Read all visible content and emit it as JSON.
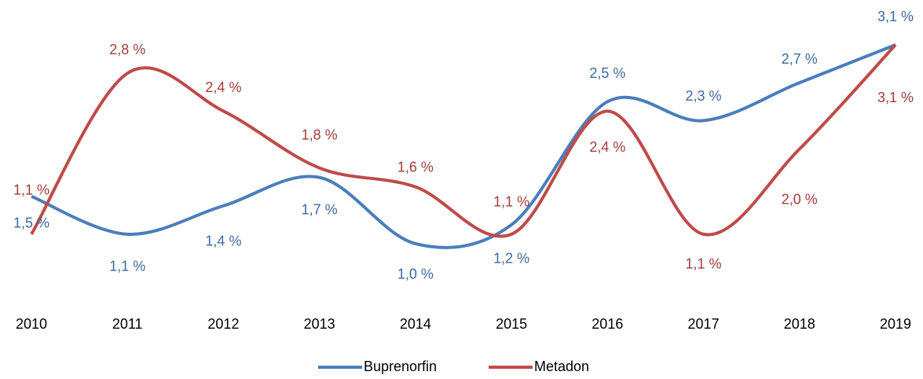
{
  "chart_data": {
    "type": "line",
    "categories": [
      "2010",
      "2011",
      "2012",
      "2013",
      "2014",
      "2015",
      "2016",
      "2017",
      "2018",
      "2019"
    ],
    "series": [
      {
        "name": "Buprenorfin",
        "color": "#4a7ebb",
        "values": [
          1.5,
          1.1,
          1.4,
          1.7,
          1.0,
          1.2,
          2.5,
          2.3,
          2.7,
          3.1
        ],
        "value_labels": [
          "1,5 %",
          "1,1 %",
          "1,4 %",
          "1,7 %",
          "1,0 %",
          "1,2 %",
          "2,5 %",
          "2,3 %",
          "2,7 %",
          "3,1 %"
        ]
      },
      {
        "name": "Metadon",
        "color": "#be4b48",
        "values": [
          1.1,
          2.8,
          2.4,
          1.8,
          1.6,
          1.1,
          2.4,
          1.1,
          2.0,
          3.1
        ],
        "value_labels": [
          "1,1 %",
          "2,8 %",
          "2,4 %",
          "1,8 %",
          "1,6 %",
          "1,1 %",
          "2,4 %",
          "1,1 %",
          "2,0 %",
          "3,1 %"
        ]
      }
    ],
    "ylim": [
      0.8,
      3.2
    ],
    "smooth": true,
    "legend": "bottom"
  }
}
